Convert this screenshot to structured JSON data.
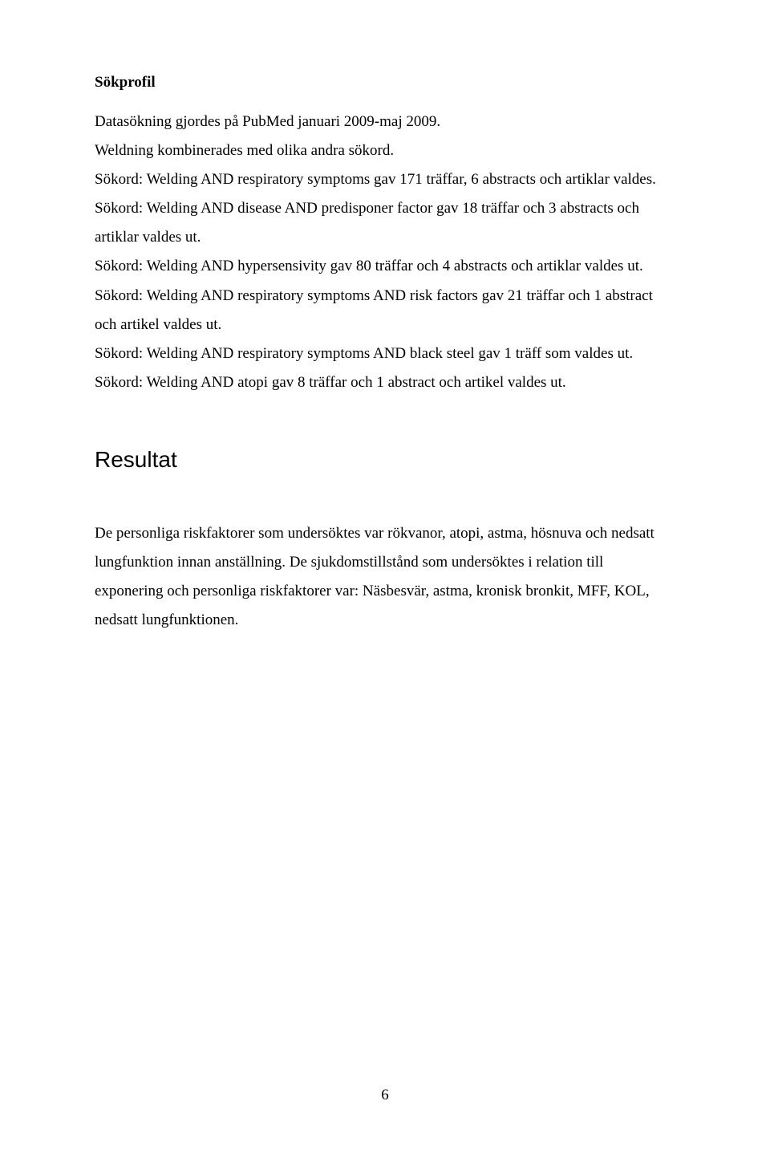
{
  "sokprofil": {
    "heading": "Sökprofil",
    "paragraphs": [
      "Datasökning gjordes på  PubMed  januari 2009-maj 2009.",
      "Weldning kombinerades med olika andra sökord.",
      "Sökord: Welding  AND  respiratory  symptoms  gav 171 träffar, 6 abstracts och artiklar valdes.",
      "Sökord: Welding  AND  disease  AND  predisponer  factor  gav 18 träffar och 3 abstracts och artiklar valdes ut.",
      "Sökord: Welding AND hypersensivity gav 80 träffar och 4 abstracts och artiklar valdes ut.",
      "Sökord: Welding AND respiratory symptoms AND risk factors gav 21 träffar och 1 abstract och  artikel valdes ut.",
      "Sökord: Welding AND respiratory symptoms AND black steel gav 1 träff som valdes ut.",
      "Sökord: Welding AND atopi gav 8 träffar och 1 abstract och artikel valdes ut."
    ]
  },
  "resultat": {
    "heading": "Resultat",
    "paragraphs": [
      "De personliga riskfaktorer som undersöktes var rökvanor, atopi, astma, hösnuva och nedsatt lungfunktion innan anställning. De sjukdomstillstånd som undersöktes i relation till exponering och personliga riskfaktorer var: Näsbesvär, astma, kronisk bronkit, MFF, KOL, nedsatt lungfunktionen."
    ]
  },
  "page_number": "6"
}
